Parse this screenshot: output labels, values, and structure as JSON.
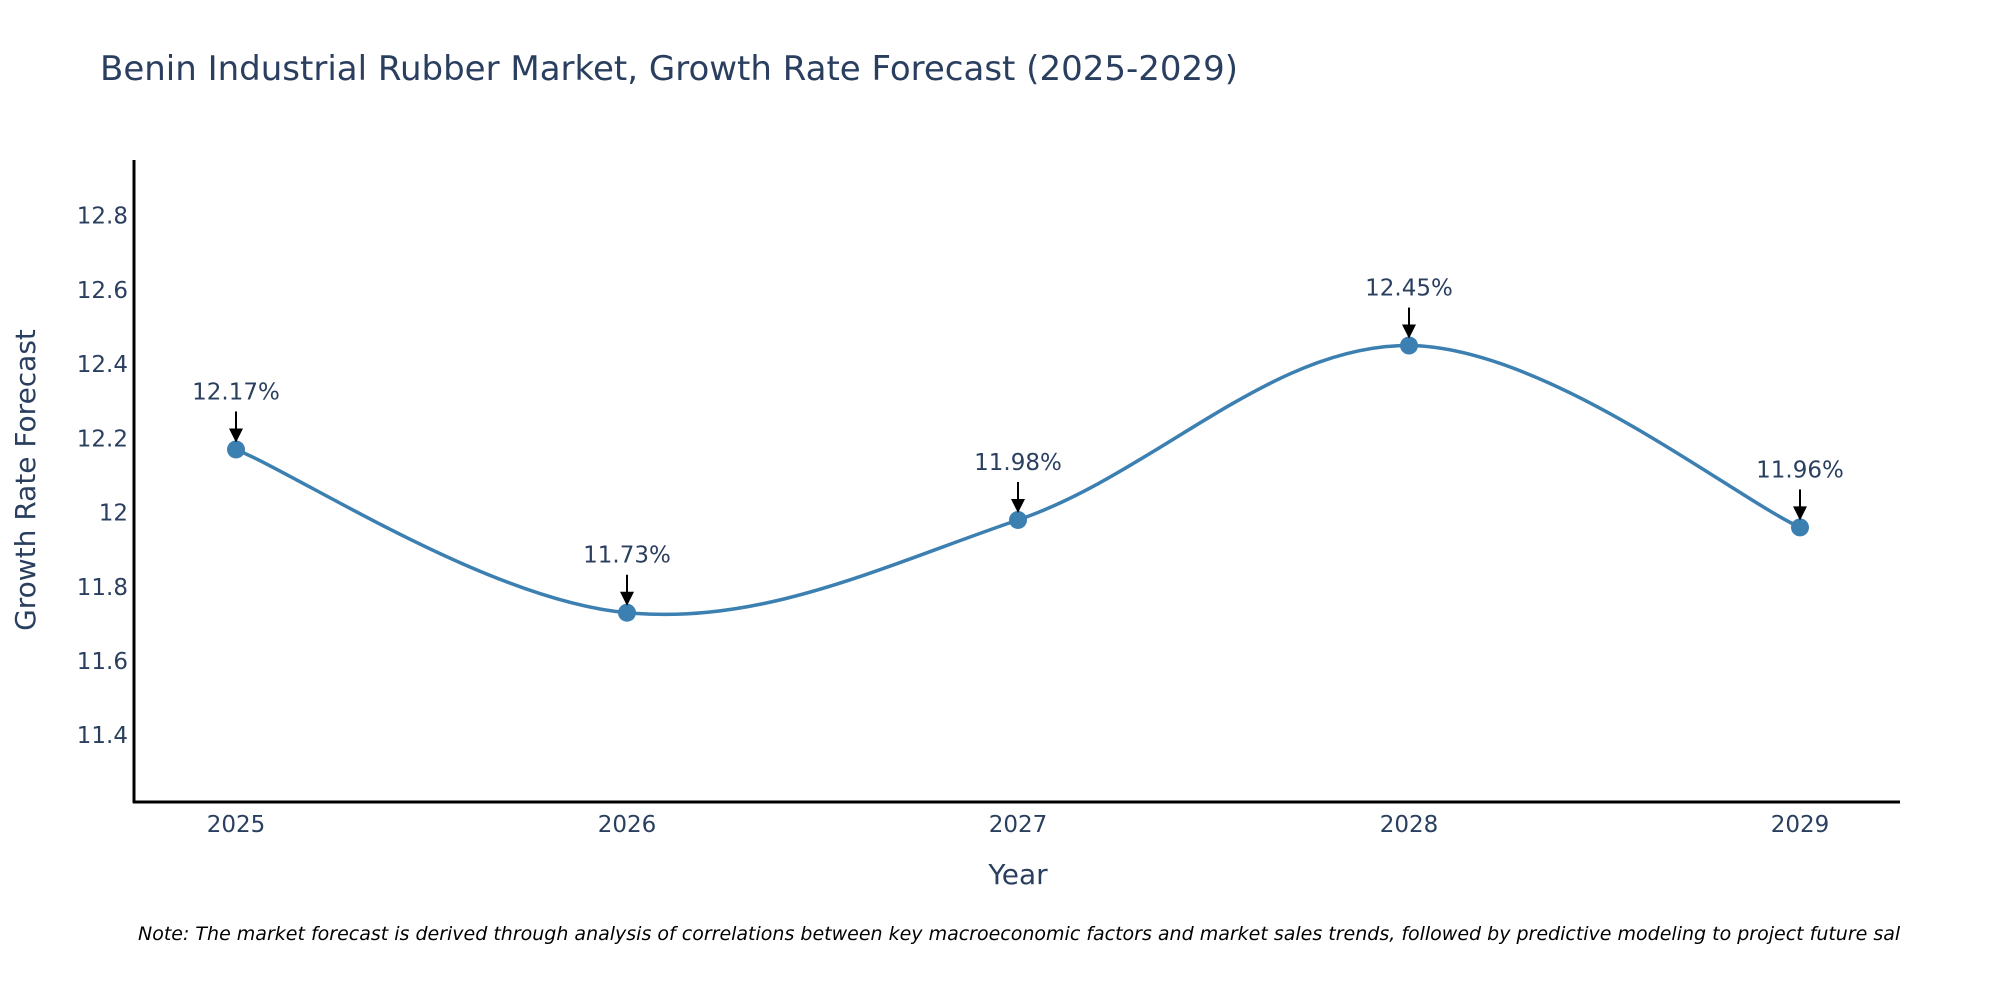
{
  "chart_data": {
    "type": "line",
    "title": "Benin Industrial Rubber Market, Growth Rate Forecast (2025-2029)",
    "xlabel": "Year",
    "ylabel": "Growth Rate Forecast",
    "categories": [
      "2025",
      "2026",
      "2027",
      "2028",
      "2029"
    ],
    "series": [
      {
        "name": "Growth Rate Forecast",
        "values": [
          12.17,
          11.73,
          11.98,
          12.45,
          11.96
        ],
        "labels": [
          "12.17%",
          "11.73%",
          "11.98%",
          "12.45%",
          "11.96%"
        ]
      }
    ],
    "yticks": [
      "11.4",
      "11.6",
      "11.8",
      "12",
      "12.2",
      "12.4",
      "12.6",
      "12.8"
    ],
    "ylim": [
      11.22,
      12.95
    ],
    "grid": false,
    "line_color": "#3c7fb1",
    "annotation_color": "#000000",
    "axis_color": "#000000",
    "note": "Note: The market forecast is derived through analysis of correlations between key macroeconomic factors and market sales trends, followed by predictive modeling to project future sal"
  }
}
